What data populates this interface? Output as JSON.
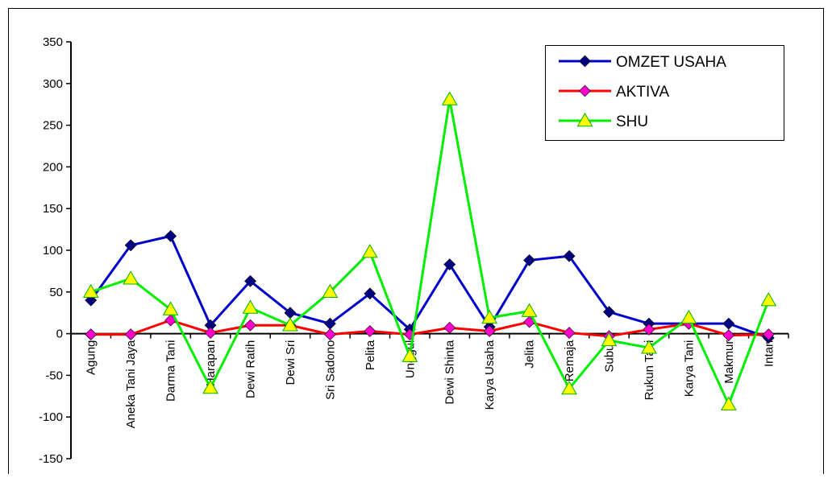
{
  "chart_data": {
    "type": "line",
    "title": "",
    "xlabel": "",
    "ylabel": "",
    "ylim": [
      -150,
      350
    ],
    "yticks": [
      350,
      300,
      250,
      200,
      150,
      100,
      50,
      0,
      -50,
      -100,
      -150
    ],
    "grid": false,
    "legend_position": "top-right",
    "categories": [
      "Agung",
      "Aneka Tani Jaya",
      "Darma Tani",
      "Harapan",
      "Dewi Ratih",
      "Dewi Sri",
      "Sri Sadono",
      "Pelita",
      "Unggul",
      "Dewi Shinta",
      "Karya Usaha",
      "Jelita",
      "Remaja",
      "Subur",
      "Rukun Tani",
      "Karya Tani",
      "Makmur",
      "Intan"
    ],
    "series": [
      {
        "name": "OMZET USAHA",
        "color": "#0000cc",
        "marker": "diamond",
        "marker_color": "#000080",
        "values": [
          40,
          106,
          117,
          10,
          63,
          25,
          12,
          48,
          5,
          83,
          8,
          88,
          93,
          26,
          12,
          12,
          12,
          -5
        ]
      },
      {
        "name": "AKTIVA",
        "color": "#ff0000",
        "marker": "diamond",
        "marker_color": "#ff00cc",
        "values": [
          -1,
          -1,
          16,
          1,
          10,
          10,
          -1,
          3,
          -1,
          7,
          3,
          14,
          1,
          -3,
          5,
          12,
          -2,
          -1
        ]
      },
      {
        "name": "SHU",
        "color": "#00ee00",
        "marker": "triangle",
        "marker_color": "#ffff00",
        "values": [
          50,
          66,
          29,
          -65,
          31,
          10,
          50,
          98,
          -27,
          281,
          19,
          27,
          -66,
          -8,
          -17,
          19,
          -85,
          40
        ]
      }
    ]
  }
}
